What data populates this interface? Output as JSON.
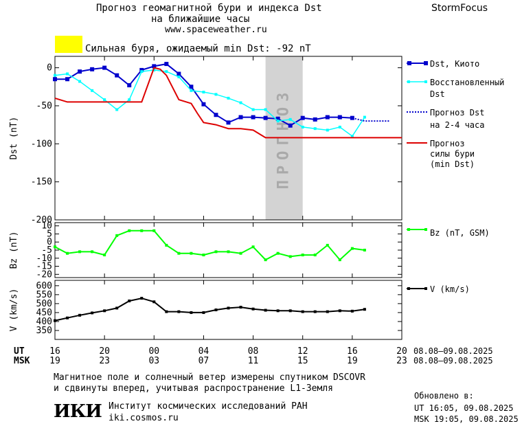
{
  "header": {
    "title_line1": "Прогноз геомагнитной бури и индекса Dst",
    "title_line2": "на ближайшие часы",
    "site": "www.spaceweather.ru",
    "brand": "StormFocus",
    "alert_text": "Сильная буря, ожидаемый min Dst: -92 nT",
    "alert_color": "#ffff00"
  },
  "forecast_band_label": "ПРОГНОЗ",
  "legend": {
    "dst_kyoto": "Dst, Киото",
    "restored_1": "Восстановленный",
    "restored_2": "Dst",
    "forecast_1": "Прогноз Dst",
    "forecast_2": "на 2-4 часа",
    "storm_1": "Прогноз",
    "storm_2": "силы бури",
    "storm_3": "(min Dst)",
    "bz": "Bz (nT, GSM)",
    "v": "V (km/s)"
  },
  "colors": {
    "dst_kyoto": "#0000cc",
    "restored": "#00ffff",
    "forecast": "#0000cc",
    "storm": "#dd0000",
    "bz": "#00ff00",
    "v": "#000000",
    "band": "#d3d3d3"
  },
  "footer": {
    "note_1": "Магнитное поле и солнечный ветер измерены спутником DSCOVR",
    "note_2": "и сдвинуты вперед, учитывая распространение L1-Земля",
    "institute": "Институт космических исследований РАН",
    "institute_site": "iki.cosmos.ru",
    "logo_text": "ИКИ",
    "updated_label": "Обновлено в:",
    "updated_ut": "UT  16:05, 09.08.2025",
    "updated_msk": "MSK 19:05, 09.08.2025"
  },
  "chart_data": [
    {
      "type": "line",
      "ylabel": "Dst (nT)",
      "ylim": [
        -200,
        15
      ],
      "yticks": [
        0,
        -50,
        -100,
        -150,
        -200
      ],
      "xlim": [
        16,
        44
      ],
      "forecast_band": [
        33,
        36
      ],
      "series": [
        {
          "name": "Dst, Киото",
          "x": [
            16,
            17,
            18,
            19,
            20,
            21,
            22,
            23,
            24,
            25,
            26,
            27,
            28,
            29,
            30,
            31,
            32,
            33,
            34,
            35,
            36,
            37,
            38,
            39,
            40
          ],
          "values": [
            -15,
            -15,
            -5,
            -2,
            0,
            -10,
            -23,
            -3,
            2,
            5,
            -8,
            -25,
            -48,
            -62,
            -72,
            -65,
            -65,
            -66,
            -67,
            -76,
            -66,
            -68,
            -65,
            -65,
            -66
          ]
        },
        {
          "name": "Восстановленный Dst",
          "x": [
            16,
            17,
            18,
            19,
            20,
            21,
            22,
            23,
            24,
            25,
            26,
            27,
            28,
            29,
            30,
            31,
            32,
            33,
            34,
            35,
            36,
            37,
            38,
            39,
            40,
            41
          ],
          "values": [
            -10,
            -8,
            -18,
            -30,
            -42,
            -55,
            -42,
            -5,
            -3,
            -5,
            -12,
            -30,
            -32,
            -35,
            -40,
            -46,
            -55,
            -55,
            -70,
            -68,
            -78,
            -80,
            -82,
            -78,
            -90,
            -65
          ]
        },
        {
          "name": "Прогноз Dst на 2-4 часа",
          "x": [
            40,
            41,
            42,
            43
          ],
          "values": [
            -66,
            -70,
            -70,
            -70
          ]
        },
        {
          "name": "Прогноз силы бури (min Dst)",
          "x": [
            16,
            17,
            18,
            19,
            20,
            21,
            22,
            23,
            24,
            24.5,
            25,
            26,
            27,
            27.5,
            28,
            29,
            30,
            31,
            32,
            33,
            34,
            35,
            44
          ],
          "values": [
            -40,
            -45,
            -45,
            -45,
            -45,
            -45,
            -45,
            -45,
            0,
            -2,
            -10,
            -42,
            -47,
            -60,
            -72,
            -75,
            -80,
            -80,
            -82,
            -92,
            -92,
            -92,
            -92
          ]
        }
      ]
    },
    {
      "type": "line",
      "ylabel": "Bz (nT)",
      "ylim": [
        -22,
        12
      ],
      "yticks": [
        10,
        5,
        0,
        -5,
        -10,
        -15,
        -20
      ],
      "ytick_labels": [
        "10",
        "5",
        "0",
        "-5",
        "-10",
        "-15",
        "-20"
      ],
      "xlim": [
        16,
        44
      ],
      "series": [
        {
          "name": "Bz (nT, GSM)",
          "x": [
            16,
            17,
            18,
            19,
            20,
            21,
            22,
            23,
            24,
            25,
            26,
            27,
            28,
            29,
            30,
            31,
            32,
            33,
            34,
            35,
            36,
            37,
            38,
            39,
            40,
            41
          ],
          "values": [
            -3,
            -7,
            -6,
            -6,
            -8,
            4,
            7,
            7,
            7,
            -2,
            -7,
            -7,
            -8,
            -6,
            -6,
            -7,
            -3,
            -11,
            -7,
            -9,
            -8,
            -8,
            -2,
            -11,
            -4,
            -5
          ]
        }
      ]
    },
    {
      "type": "line",
      "ylabel": "V (km/s)",
      "ylim": [
        300,
        630
      ],
      "yticks": [
        350,
        400,
        450,
        500,
        550,
        600
      ],
      "xlim": [
        16,
        44
      ],
      "series": [
        {
          "name": "V (km/s)",
          "x": [
            16,
            17,
            18,
            19,
            20,
            21,
            22,
            23,
            24,
            25,
            26,
            27,
            28,
            29,
            30,
            31,
            32,
            33,
            34,
            35,
            36,
            37,
            38,
            39,
            40,
            41
          ],
          "values": [
            405,
            420,
            435,
            448,
            460,
            475,
            515,
            530,
            510,
            455,
            455,
            450,
            450,
            465,
            475,
            480,
            470,
            463,
            460,
            460,
            455,
            455,
            455,
            460,
            458,
            468
          ]
        }
      ]
    }
  ],
  "x_axis": {
    "ut_label": "UT",
    "msk_label": "MSK",
    "ut_ticks": [
      "16",
      "20",
      "00",
      "04",
      "08",
      "12",
      "16",
      "20"
    ],
    "msk_ticks": [
      "19",
      "23",
      "03",
      "07",
      "11",
      "15",
      "19",
      "23"
    ],
    "tick_hours": [
      16,
      20,
      24,
      28,
      32,
      36,
      40,
      44
    ],
    "ut_range": "08.08–09.08.2025",
    "msk_range": "08.08–09.08.2025"
  }
}
